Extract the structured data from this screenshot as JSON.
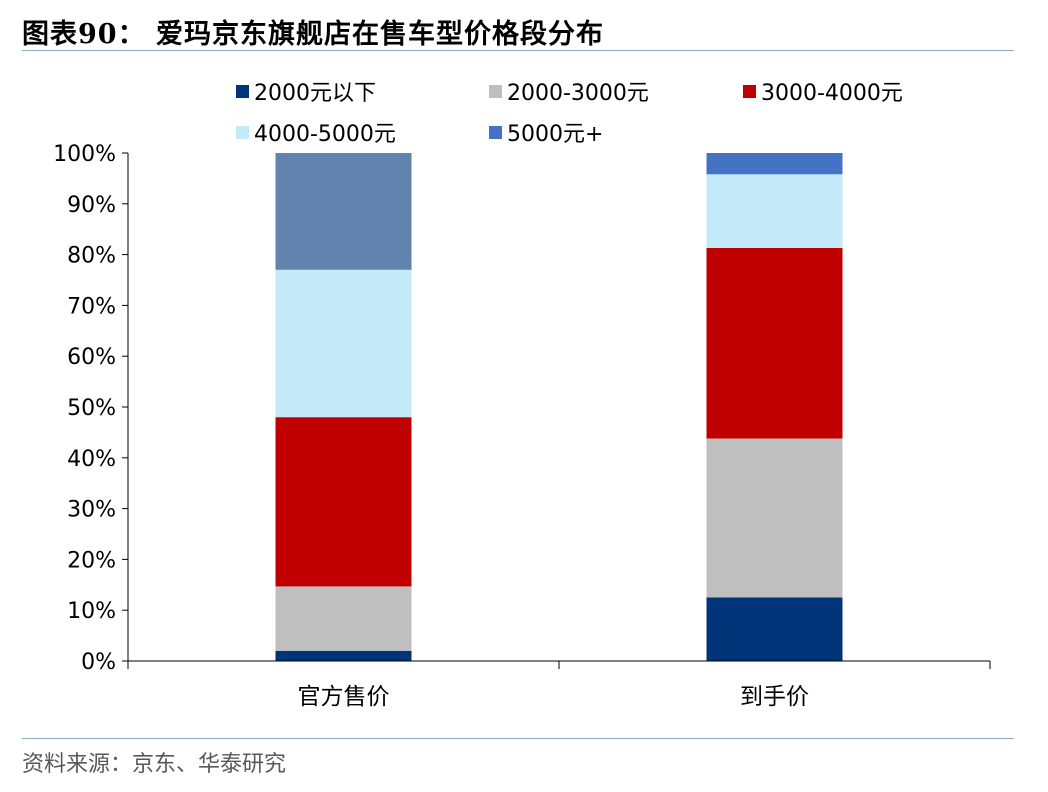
{
  "header": {
    "title": "图表90：  爱玛京东旗舰店在售车型价格段分布"
  },
  "footer": {
    "source": "资料来源：京东、华泰研究"
  },
  "chart_data": {
    "type": "bar",
    "stacked": true,
    "categories": [
      "官方售价",
      "到手价"
    ],
    "series": [
      {
        "name": "2000元以下",
        "color": "#003478",
        "values": [
          2,
          12.5
        ]
      },
      {
        "name": "2000-3000元",
        "color": "#bfbfbf",
        "values": [
          12.7,
          31.3
        ]
      },
      {
        "name": "3000-4000元",
        "color": "#c00000",
        "values": [
          33.3,
          37.5
        ]
      },
      {
        "name": "4000-5000元",
        "color": "#c4eafa",
        "values": [
          29,
          14.5
        ]
      },
      {
        "name": "5000元+",
        "color_by_category": [
          "#6283ad",
          "#4472c4"
        ],
        "values": [
          23,
          4.2
        ]
      }
    ],
    "yticks": [
      "0%",
      "10%",
      "20%",
      "30%",
      "40%",
      "50%",
      "60%",
      "70%",
      "80%",
      "90%",
      "100%"
    ],
    "ylim": [
      0,
      100
    ],
    "legend_position": "top",
    "grid": false
  }
}
